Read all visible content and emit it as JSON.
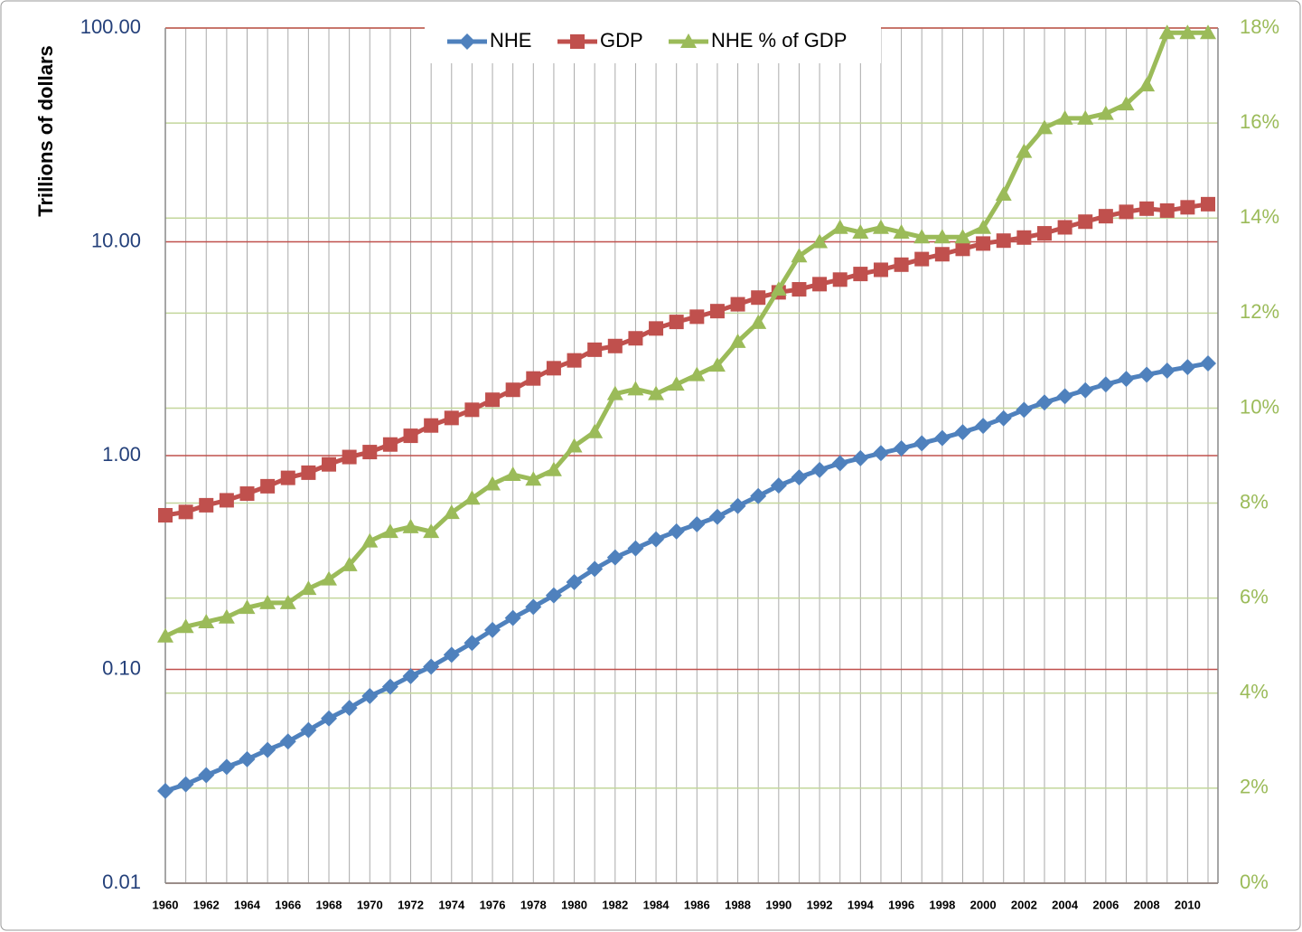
{
  "chart_data": {
    "type": "line",
    "y_title": "Trillions of dollars",
    "y_scale": "log",
    "categories": [
      "1960",
      null,
      "1962",
      null,
      "1964",
      null,
      "1966",
      null,
      "1968",
      null,
      "1970",
      null,
      "1972",
      null,
      "1974",
      null,
      "1976",
      null,
      "1978",
      null,
      "1980",
      null,
      "1982",
      null,
      "1984",
      null,
      "1986",
      null,
      "1988",
      null,
      "1990",
      null,
      "1992",
      null,
      "1994",
      null,
      "1996",
      null,
      "1998",
      null,
      "2000",
      null,
      "2002",
      null,
      "2004",
      null,
      "2006",
      null,
      "2008",
      null,
      "2010",
      null
    ],
    "ylim": [
      0.01,
      100
    ],
    "yticks": [
      0.01,
      {
        "value": 0.1,
        "label": "0.10"
      },
      {
        "value": 1,
        "label": "1.00"
      },
      {
        "value": 10,
        "label": "10.00"
      },
      {
        "value": 100,
        "label": "100.00"
      }
    ],
    "y2lim": [
      0,
      18
    ],
    "y2ticks": [
      {
        "value": 0,
        "label": "0%"
      },
      {
        "value": 2,
        "label": "2%"
      },
      {
        "value": 4,
        "label": "4%"
      },
      {
        "value": 6,
        "label": "6%"
      },
      {
        "value": 8,
        "label": "8%"
      },
      {
        "value": 10,
        "label": "10%"
      },
      {
        "value": 12,
        "label": "12%"
      },
      {
        "value": 14,
        "label": "14%"
      },
      {
        "value": 16,
        "label": "16%"
      },
      {
        "value": 18,
        "label": "18%"
      }
    ],
    "grid": true,
    "grid_color": "#c0504d",
    "grid2_color": "#c3d69b",
    "legend": "top",
    "series": [
      {
        "name": "NHE",
        "color": "#4f81bd",
        "marker": "diamond",
        "values": [
          0.027,
          0.029,
          0.032,
          0.035,
          0.038,
          0.042,
          0.046,
          0.052,
          0.059,
          0.066,
          0.075,
          0.083,
          0.093,
          0.103,
          0.117,
          0.133,
          0.153,
          0.174,
          0.196,
          0.222,
          0.256,
          0.295,
          0.334,
          0.368,
          0.406,
          0.442,
          0.477,
          0.517,
          0.581,
          0.647,
          0.724,
          0.791,
          0.857,
          0.921,
          0.972,
          1.027,
          1.081,
          1.142,
          1.208,
          1.286,
          1.378,
          1.495,
          1.637,
          1.772,
          1.895,
          2.021,
          2.152,
          2.284,
          2.391,
          2.496,
          2.594,
          2.7
        ]
      },
      {
        "name": "GDP",
        "color": "#c0504d",
        "marker": "square",
        "values": [
          0.526,
          0.545,
          0.586,
          0.618,
          0.664,
          0.719,
          0.787,
          0.832,
          0.91,
          0.985,
          1.039,
          1.127,
          1.238,
          1.383,
          1.5,
          1.638,
          1.825,
          2.031,
          2.295,
          2.563,
          2.789,
          3.128,
          3.255,
          3.537,
          3.933,
          4.22,
          4.463,
          4.74,
          5.104,
          5.484,
          5.803,
          5.996,
          6.338,
          6.657,
          7.072,
          7.398,
          7.817,
          8.304,
          8.747,
          9.268,
          9.817,
          10.128,
          10.47,
          10.961,
          11.686,
          12.422,
          13.178,
          13.808,
          14.292,
          14.0,
          14.5,
          15.0
        ]
      },
      {
        "name": "NHE % of GDP",
        "color": "#9bbb59",
        "marker": "triangle",
        "axis": "y2",
        "values": [
          5.2,
          5.4,
          5.5,
          5.6,
          5.8,
          5.9,
          5.9,
          6.2,
          6.4,
          6.7,
          7.2,
          7.4,
          7.5,
          7.4,
          7.8,
          8.1,
          8.4,
          8.6,
          8.5,
          8.7,
          9.2,
          9.5,
          10.3,
          10.4,
          10.3,
          10.5,
          10.7,
          10.9,
          11.4,
          11.8,
          12.5,
          13.2,
          13.5,
          13.8,
          13.7,
          13.8,
          13.7,
          13.6,
          13.6,
          13.6,
          13.8,
          14.5,
          15.4,
          15.9,
          16.1,
          16.1,
          16.2,
          16.4,
          16.8,
          17.9,
          17.9,
          17.9
        ]
      }
    ]
  }
}
